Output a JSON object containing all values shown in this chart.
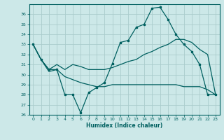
{
  "xlabel": "Humidex (Indice chaleur)",
  "bg_color": "#cce8e8",
  "grid_color": "#aacccc",
  "line_color": "#006060",
  "ylim": [
    26,
    37
  ],
  "xlim": [
    -0.5,
    23.5
  ],
  "yticks": [
    26,
    27,
    28,
    29,
    30,
    31,
    32,
    33,
    34,
    35,
    36
  ],
  "xticks": [
    0,
    1,
    2,
    3,
    4,
    5,
    6,
    7,
    8,
    9,
    10,
    11,
    12,
    13,
    14,
    15,
    16,
    17,
    18,
    19,
    20,
    21,
    22,
    23
  ],
  "line1_x": [
    0,
    1,
    2,
    3,
    4,
    5,
    6,
    7,
    8,
    9,
    10,
    11,
    12,
    13,
    14,
    15,
    16,
    17,
    18,
    19,
    20,
    21,
    22,
    23
  ],
  "line1_y": [
    33.0,
    31.5,
    30.5,
    30.5,
    28.0,
    28.0,
    26.2,
    28.2,
    28.7,
    29.2,
    31.1,
    33.2,
    33.4,
    34.7,
    35.0,
    36.6,
    36.7,
    35.5,
    34.0,
    33.0,
    32.3,
    31.0,
    28.0,
    28.0
  ],
  "line2_x": [
    0,
    1,
    2,
    3,
    4,
    5,
    6,
    7,
    8,
    9,
    10,
    11,
    12,
    13,
    14,
    15,
    16,
    17,
    18,
    19,
    20,
    21,
    22,
    23
  ],
  "line2_y": [
    33.0,
    31.5,
    30.5,
    31.0,
    30.5,
    31.0,
    30.8,
    30.5,
    30.5,
    30.5,
    30.7,
    31.0,
    31.3,
    31.5,
    32.0,
    32.3,
    32.7,
    33.0,
    33.5,
    33.5,
    33.2,
    32.5,
    32.0,
    28.0
  ],
  "line3_x": [
    0,
    1,
    2,
    3,
    4,
    5,
    6,
    7,
    8,
    9,
    10,
    11,
    12,
    13,
    14,
    15,
    16,
    17,
    18,
    19,
    20,
    21,
    22,
    23
  ],
  "line3_y": [
    33.0,
    31.5,
    30.3,
    30.5,
    29.8,
    29.5,
    29.2,
    29.0,
    28.8,
    28.8,
    29.0,
    29.0,
    29.0,
    29.0,
    29.0,
    29.0,
    29.0,
    29.0,
    29.0,
    28.8,
    28.8,
    28.8,
    28.5,
    28.0
  ]
}
